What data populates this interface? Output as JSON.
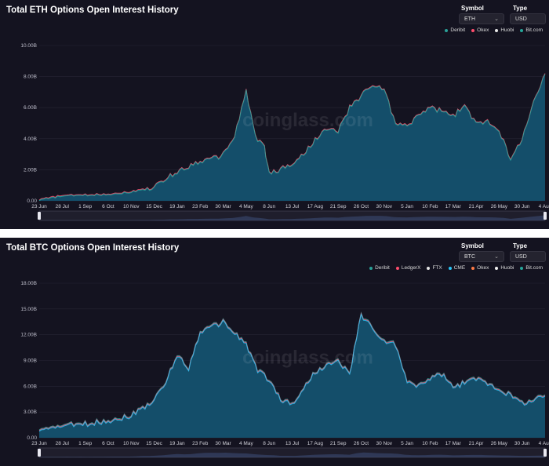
{
  "eth": {
    "title": "Total ETH Options Open Interest History",
    "symbol_label": "Symbol",
    "symbol_value": "ETH",
    "type_label": "Type",
    "type_value": "USD",
    "legend": [
      {
        "name": "Deribit",
        "color": "#2aa198"
      },
      {
        "name": "Okex",
        "color": "#ff4d6d"
      },
      {
        "name": "Huobi",
        "color": "#e6e6e6"
      },
      {
        "name": "Bit.com",
        "color": "#26a69a"
      }
    ],
    "watermark": "coinglass.com"
  },
  "btc": {
    "title": "Total BTC Options Open Interest History",
    "symbol_label": "Symbol",
    "symbol_value": "BTC",
    "type_label": "Type",
    "type_value": "USD",
    "legend": [
      {
        "name": "Deribit",
        "color": "#2aa198"
      },
      {
        "name": "LedgerX",
        "color": "#ff4d6d"
      },
      {
        "name": "FTX",
        "color": "#e6e6e6"
      },
      {
        "name": "CME",
        "color": "#29c5f6"
      },
      {
        "name": "Okex",
        "color": "#ff7a45"
      },
      {
        "name": "Huobi",
        "color": "#f0f0f0"
      },
      {
        "name": "Bit.com",
        "color": "#26a69a"
      }
    ],
    "watermark": "coinglass.com"
  },
  "chart_data": [
    {
      "type": "area",
      "title": "Total ETH Options Open Interest History",
      "x_ticks": [
        "23 Jun",
        "28 Jul",
        "1 Sep",
        "6 Oct",
        "10 Nov",
        "15 Dec",
        "19 Jan",
        "23 Feb",
        "30 Mar",
        "4 May",
        "8 Jun",
        "13 Jul",
        "17 Aug",
        "21 Sep",
        "26 Oct",
        "30 Nov",
        "5 Jan",
        "10 Feb",
        "17 Mar",
        "21 Apr",
        "26 May",
        "30 Jun",
        "4 Aug"
      ],
      "y_ticks": [
        "0.00",
        "2.00B",
        "4.00B",
        "6.00B",
        "8.00B",
        "10.00B"
      ],
      "ylim": [
        0,
        10
      ],
      "x": [
        0,
        1,
        2,
        3,
        4,
        5,
        6,
        7,
        7.5,
        8,
        8.5,
        9,
        9.4,
        9.8,
        10,
        10.4,
        11,
        11.5,
        12,
        12.5,
        13,
        13.5,
        14,
        14.5,
        15,
        15.5,
        16,
        16.5,
        17,
        17.5,
        18,
        18.5,
        19,
        19.5,
        20,
        20.5,
        21,
        21.5,
        22
      ],
      "values": [
        0.1,
        0.35,
        0.4,
        0.45,
        0.6,
        0.9,
        1.9,
        2.6,
        2.7,
        3.0,
        4.2,
        7.1,
        4.2,
        3.4,
        1.8,
        2.0,
        2.4,
        3.0,
        4.0,
        4.6,
        4.5,
        6.0,
        6.8,
        7.5,
        7.2,
        5.0,
        4.8,
        5.6,
        6.0,
        5.8,
        5.5,
        6.1,
        5.0,
        5.2,
        4.6,
        2.6,
        4.1,
        6.3,
        8.2
      ],
      "series": [
        {
          "name": "Deribit"
        },
        {
          "name": "Okex"
        },
        {
          "name": "Huobi"
        },
        {
          "name": "Bit.com"
        }
      ],
      "legend_position": "top-right"
    },
    {
      "type": "area",
      "title": "Total BTC Options Open Interest History",
      "x_ticks": [
        "23 Jun",
        "28 Jul",
        "1 Sep",
        "6 Oct",
        "10 Nov",
        "15 Dec",
        "19 Jan",
        "23 Feb",
        "30 Mar",
        "4 May",
        "8 Jun",
        "13 Jul",
        "17 Aug",
        "21 Sep",
        "26 Oct",
        "30 Nov",
        "5 Jan",
        "10 Feb",
        "17 Mar",
        "21 Apr",
        "26 May",
        "30 Jun",
        "4 Aug"
      ],
      "y_ticks": [
        "0.00",
        "3.00B",
        "6.00B",
        "9.00B",
        "12.00B",
        "15.00B",
        "18.00B"
      ],
      "ylim": [
        0,
        18
      ],
      "x": [
        0,
        1,
        2,
        3,
        4,
        5,
        5.5,
        6,
        6.5,
        7,
        7.5,
        8,
        8.5,
        9,
        9.5,
        10,
        10.5,
        11,
        11.5,
        12,
        12.5,
        13,
        13.5,
        14,
        14.5,
        15,
        15.5,
        16,
        16.5,
        17,
        17.5,
        18,
        18.5,
        19,
        19.5,
        20,
        20.5,
        21,
        21.5,
        22
      ],
      "values": [
        1.0,
        1.5,
        1.7,
        2.1,
        2.7,
        4.5,
        6.5,
        9.8,
        8.2,
        12.5,
        13.0,
        13.6,
        12.3,
        11.0,
        8.0,
        6.8,
        4.6,
        4.0,
        5.8,
        7.8,
        8.5,
        9.0,
        7.5,
        14.5,
        12.8,
        11.3,
        11.0,
        6.5,
        6.2,
        7.0,
        7.5,
        6.0,
        6.5,
        7.0,
        6.5,
        5.8,
        5.0,
        4.2,
        4.5,
        5.0
      ],
      "series": [
        {
          "name": "Deribit"
        },
        {
          "name": "LedgerX"
        },
        {
          "name": "FTX"
        },
        {
          "name": "CME"
        },
        {
          "name": "Okex"
        },
        {
          "name": "Huobi"
        },
        {
          "name": "Bit.com"
        }
      ],
      "legend_position": "top-right"
    }
  ]
}
